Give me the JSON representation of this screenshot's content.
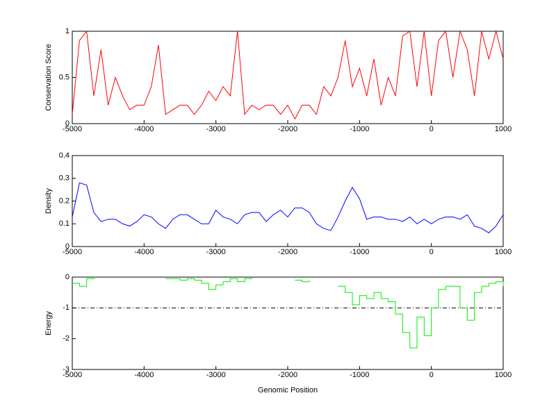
{
  "chart_data": [
    {
      "type": "line",
      "ylabel": "Conservation Score",
      "x": [
        -5000,
        -4900,
        -4800,
        -4700,
        -4600,
        -4500,
        -4400,
        -4300,
        -4200,
        -4100,
        -4000,
        -3900,
        -3800,
        -3700,
        -3600,
        -3500,
        -3400,
        -3300,
        -3200,
        -3100,
        -3000,
        -2900,
        -2800,
        -2700,
        -2600,
        -2500,
        -2400,
        -2300,
        -2200,
        -2100,
        -2000,
        -1900,
        -1800,
        -1700,
        -1600,
        -1500,
        -1400,
        -1300,
        -1200,
        -1100,
        -1000,
        -900,
        -800,
        -700,
        -600,
        -500,
        -400,
        -300,
        -200,
        -100,
        0,
        100,
        200,
        300,
        400,
        500,
        600,
        700,
        800,
        900,
        1000
      ],
      "series": [
        {
          "color": "#ff0000",
          "values": [
            0.1,
            0.9,
            1,
            0.3,
            0.8,
            0.2,
            0.5,
            0.3,
            0.15,
            0.2,
            0.2,
            0.4,
            0.85,
            0.1,
            0.15,
            0.2,
            0.2,
            0.1,
            0.2,
            0.35,
            0.25,
            0.4,
            0.3,
            1,
            0.1,
            0.2,
            0.15,
            0.2,
            0.2,
            0.1,
            0.2,
            0.05,
            0.2,
            0.2,
            0.1,
            0.4,
            0.3,
            0.5,
            0.9,
            0.4,
            0.6,
            0.3,
            0.7,
            0.2,
            0.5,
            0.3,
            0.95,
            1,
            0.4,
            1,
            0.3,
            0.9,
            1,
            0.5,
            1,
            0.8,
            0.3,
            1,
            0.7,
            1,
            0.7
          ]
        }
      ],
      "xlim": [
        -5000,
        1000
      ],
      "xticks": [
        -5000,
        -4000,
        -3000,
        -2000,
        -1000,
        0,
        1000
      ],
      "ylim": [
        0,
        1
      ],
      "yticks": [
        0,
        0.5,
        1
      ]
    },
    {
      "type": "line",
      "ylabel": "Density",
      "x": [
        -5000,
        -4900,
        -4800,
        -4700,
        -4600,
        -4500,
        -4400,
        -4300,
        -4200,
        -4100,
        -4000,
        -3900,
        -3800,
        -3700,
        -3600,
        -3500,
        -3400,
        -3300,
        -3200,
        -3100,
        -3000,
        -2900,
        -2800,
        -2700,
        -2600,
        -2500,
        -2400,
        -2300,
        -2200,
        -2100,
        -2000,
        -1900,
        -1800,
        -1700,
        -1600,
        -1500,
        -1400,
        -1300,
        -1200,
        -1100,
        -1000,
        -900,
        -800,
        -700,
        -600,
        -500,
        -400,
        -300,
        -200,
        -100,
        0,
        100,
        200,
        300,
        400,
        500,
        600,
        700,
        800,
        900,
        1000
      ],
      "series": [
        {
          "color": "#0000ff",
          "values": [
            0.13,
            0.28,
            0.27,
            0.15,
            0.11,
            0.12,
            0.12,
            0.1,
            0.09,
            0.11,
            0.14,
            0.13,
            0.1,
            0.08,
            0.12,
            0.14,
            0.14,
            0.12,
            0.1,
            0.1,
            0.16,
            0.13,
            0.12,
            0.1,
            0.14,
            0.15,
            0.15,
            0.11,
            0.14,
            0.16,
            0.13,
            0.17,
            0.17,
            0.15,
            0.1,
            0.08,
            0.07,
            0.13,
            0.2,
            0.26,
            0.21,
            0.12,
            0.13,
            0.13,
            0.12,
            0.12,
            0.11,
            0.13,
            0.1,
            0.12,
            0.1,
            0.12,
            0.13,
            0.13,
            0.12,
            0.14,
            0.09,
            0.08,
            0.06,
            0.09,
            0.14
          ]
        }
      ],
      "xlim": [
        -5000,
        1000
      ],
      "xticks": [
        -5000,
        -4000,
        -3000,
        -2000,
        -1000,
        0,
        1000
      ],
      "ylim": [
        0,
        0.4
      ],
      "yticks": [
        0,
        0.1,
        0.2,
        0.3,
        0.4
      ]
    },
    {
      "type": "stairs",
      "ylabel": "Energy",
      "xlabel": "Genomic Position",
      "x": [
        -5000,
        -4900,
        -4800,
        -4700,
        -4600,
        -4500,
        -4400,
        -4300,
        -4200,
        -4100,
        -4000,
        -3900,
        -3800,
        -3700,
        -3600,
        -3500,
        -3400,
        -3300,
        -3200,
        -3100,
        -3000,
        -2900,
        -2800,
        -2700,
        -2600,
        -2500,
        -2400,
        -2300,
        -2200,
        -2100,
        -2000,
        -1900,
        -1800,
        -1700,
        -1600,
        -1500,
        -1400,
        -1300,
        -1200,
        -1100,
        -1000,
        -900,
        -800,
        -700,
        -600,
        -500,
        -400,
        -300,
        -200,
        -100,
        0,
        100,
        200,
        300,
        400,
        500,
        600,
        700,
        800,
        900,
        1000
      ],
      "series": [
        {
          "color": "#00ee00",
          "values": [
            -0.2,
            -0.3,
            -0.05,
            0,
            null,
            null,
            null,
            null,
            null,
            null,
            null,
            null,
            null,
            -0.05,
            -0.05,
            -0.1,
            -0.05,
            -0.1,
            -0.2,
            -0.4,
            -0.25,
            -0.15,
            -0.05,
            -0.15,
            -0.05,
            0,
            null,
            null,
            null,
            null,
            null,
            -0.1,
            -0.15,
            -0.1,
            null,
            null,
            null,
            -0.3,
            -0.5,
            -0.9,
            -0.6,
            -0.7,
            -0.5,
            -0.7,
            -0.8,
            -1.2,
            -1.8,
            -2.3,
            -1.3,
            -1.9,
            -1,
            -0.4,
            -0.3,
            -0.3,
            -1,
            -1.4,
            -0.5,
            -0.3,
            -0.2,
            -0.15,
            -0.3
          ]
        }
      ],
      "threshold": -1,
      "xlim": [
        -5000,
        1000
      ],
      "xticks": [
        -5000,
        -4000,
        -3000,
        -2000,
        -1000,
        0,
        1000
      ],
      "ylim": [
        -3,
        0
      ],
      "yticks": [
        -3,
        -2,
        -1,
        0
      ]
    }
  ]
}
